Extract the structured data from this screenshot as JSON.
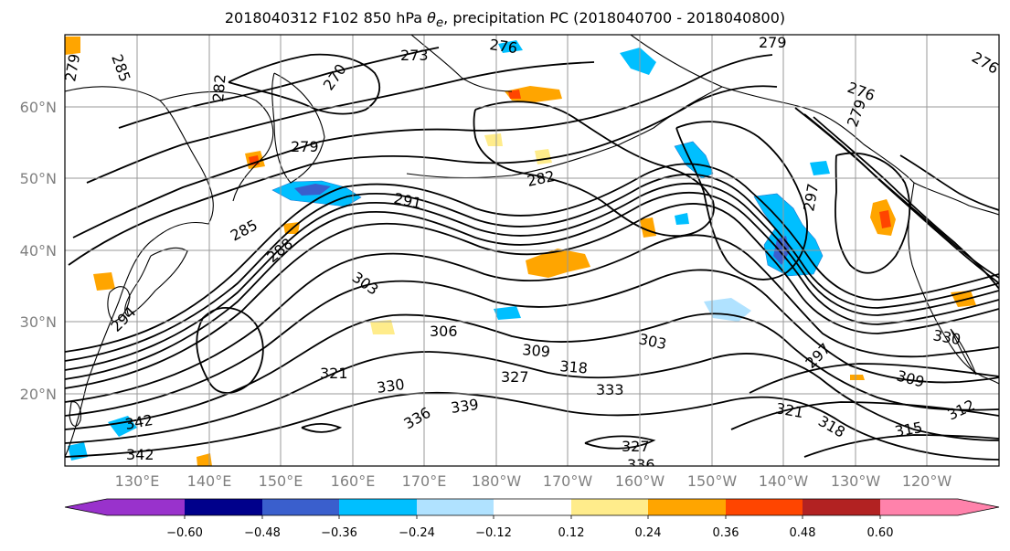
{
  "title": {
    "prefix": "2018040312 F102 850 hPa ",
    "symbol": "θ",
    "subscript": "e",
    "suffix": ", precipitation PC (2018040700 - 2018040800)"
  },
  "lat_labels": [
    "60°N",
    "50°N",
    "40°N",
    "30°N",
    "20°N"
  ],
  "lon_labels": [
    "130°E",
    "140°E",
    "150°E",
    "160°E",
    "170°E",
    "180°W",
    "170°W",
    "160°W",
    "150°W",
    "140°W",
    "130°W",
    "120°W"
  ],
  "colorbar": {
    "ticks": [
      "−0.60",
      "−0.48",
      "−0.36",
      "−0.24",
      "−0.12",
      "0.12",
      "0.24",
      "0.36",
      "0.48",
      "0.60"
    ],
    "colors": [
      "#9932cc",
      "#00008b",
      "#3a5fcd",
      "#00bfff",
      "#b0e2ff",
      "#ffffff",
      "#ffec8b",
      "#ffa500",
      "#ff4500",
      "#b22222",
      "#ff82ab"
    ]
  },
  "contour_labels": [
    "279",
    "285",
    "276",
    "273",
    "279",
    "270",
    "282",
    "279",
    "282",
    "276",
    "276",
    "279",
    "285",
    "291",
    "297",
    "303",
    "306",
    "309",
    "303",
    "318",
    "321",
    "327",
    "330",
    "333",
    "336",
    "339",
    "342",
    "342",
    "327",
    "336",
    "321",
    "318",
    "315",
    "312",
    "309",
    "330",
    "294",
    "288",
    "297"
  ],
  "colors": {
    "coast": "#000000",
    "contour": "#000000",
    "grid": "#9a9a9a",
    "axis_label": "#808080"
  }
}
